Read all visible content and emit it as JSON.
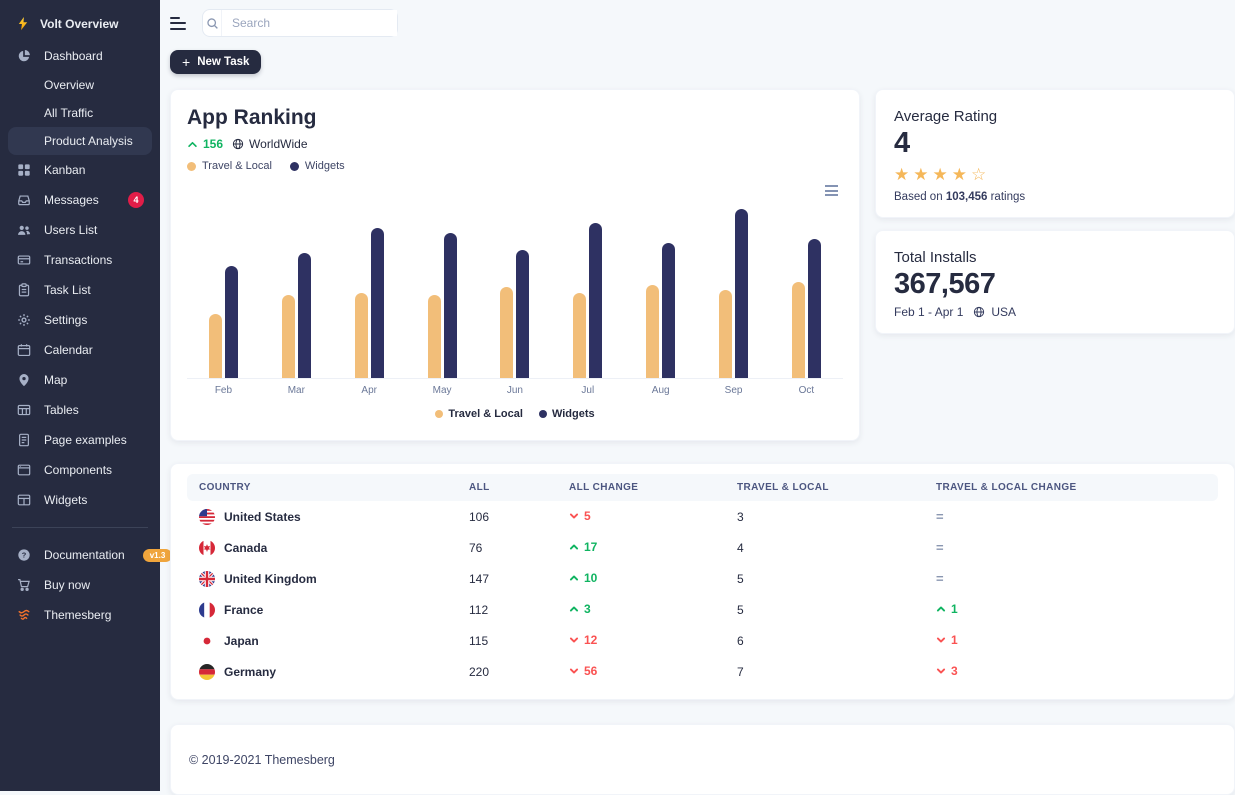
{
  "app": {
    "brand": "Volt Overview"
  },
  "topbar": {
    "search_placeholder": "Search"
  },
  "actions": {
    "new_task": "New Task"
  },
  "sidebar": {
    "items": [
      {
        "label": "Dashboard",
        "icon": "pie-chart"
      },
      {
        "label": "Overview",
        "indent": true
      },
      {
        "label": "All Traffic",
        "indent": true
      },
      {
        "label": "Product Analysis",
        "indent": true,
        "active": true
      },
      {
        "label": "Kanban",
        "icon": "grid"
      },
      {
        "label": "Messages",
        "icon": "inbox",
        "badge": "4"
      },
      {
        "label": "Users List",
        "icon": "users"
      },
      {
        "label": "Transactions",
        "icon": "credit-card"
      },
      {
        "label": "Task List",
        "icon": "clipboard"
      },
      {
        "label": "Settings",
        "icon": "gear"
      },
      {
        "label": "Calendar",
        "icon": "calendar"
      },
      {
        "label": "Map",
        "icon": "map-pin"
      },
      {
        "label": "Tables",
        "icon": "table"
      },
      {
        "label": "Page examples",
        "icon": "document"
      },
      {
        "label": "Components",
        "icon": "window"
      },
      {
        "label": "Widgets",
        "icon": "widgets"
      }
    ],
    "footer_items": [
      {
        "label": "Documentation",
        "icon": "question",
        "badge": "v1.3"
      },
      {
        "label": "Buy now",
        "icon": "cart"
      },
      {
        "label": "Themesberg",
        "icon": "themesberg-logo"
      }
    ]
  },
  "app_ranking": {
    "title": "App Ranking",
    "change": "156",
    "scope": "WorldWide"
  },
  "chart_data": {
    "type": "bar",
    "categories": [
      "Feb",
      "Mar",
      "Apr",
      "May",
      "Jun",
      "Jul",
      "Aug",
      "Sep",
      "Oct"
    ],
    "series": [
      {
        "name": "Travel & Local",
        "color": "#f2be79",
        "values": [
          38,
          49,
          50,
          49,
          54,
          50,
          55,
          52,
          57
        ]
      },
      {
        "name": "Widgets",
        "color": "#2e3162",
        "values": [
          66,
          74,
          89,
          86,
          76,
          92,
          80,
          100,
          82
        ]
      }
    ],
    "title": "App Ranking",
    "xlabel": "",
    "ylabel": "",
    "ylim": [
      0,
      100
    ],
    "grid": false,
    "legend_position": "bottom"
  },
  "cards": {
    "average_rating": {
      "title": "Average Rating",
      "value": "4",
      "stars_filled": 4,
      "stars_total": 5,
      "caption_prefix": "Based on",
      "caption_count": "103,456",
      "caption_suffix": "ratings"
    },
    "total_installs": {
      "title": "Total Installs",
      "value": "367,567",
      "period": "Feb 1 - Apr 1",
      "region": "USA"
    }
  },
  "table": {
    "columns": [
      "Country",
      "All",
      "All Change",
      "Travel & Local",
      "Travel & Local Change"
    ],
    "rows": [
      {
        "country": "United States",
        "flag": "us",
        "all": "106",
        "all_change": {
          "dir": "down",
          "value": "5"
        },
        "travel_local": "3",
        "travel_local_change": {
          "dir": "equal",
          "value": ""
        }
      },
      {
        "country": "Canada",
        "flag": "ca",
        "all": "76",
        "all_change": {
          "dir": "up",
          "value": "17"
        },
        "travel_local": "4",
        "travel_local_change": {
          "dir": "equal",
          "value": ""
        }
      },
      {
        "country": "United Kingdom",
        "flag": "gb",
        "all": "147",
        "all_change": {
          "dir": "up",
          "value": "10"
        },
        "travel_local": "5",
        "travel_local_change": {
          "dir": "equal",
          "value": ""
        }
      },
      {
        "country": "France",
        "flag": "fr",
        "all": "112",
        "all_change": {
          "dir": "up",
          "value": "3"
        },
        "travel_local": "5",
        "travel_local_change": {
          "dir": "up",
          "value": "1"
        }
      },
      {
        "country": "Japan",
        "flag": "jp",
        "all": "115",
        "all_change": {
          "dir": "down",
          "value": "12"
        },
        "travel_local": "6",
        "travel_local_change": {
          "dir": "down",
          "value": "1"
        }
      },
      {
        "country": "Germany",
        "flag": "de",
        "all": "220",
        "all_change": {
          "dir": "down",
          "value": "56"
        },
        "travel_local": "7",
        "travel_local_change": {
          "dir": "down",
          "value": "3"
        }
      }
    ]
  },
  "footer": {
    "copyright": "© 2019-2021 Themesberg"
  },
  "colors": {
    "sidebar_bg": "#262b40",
    "accent_orange": "#f2be79",
    "accent_navy": "#2e3162",
    "success_green": "#10b461",
    "danger_red": "#fa5252",
    "star_orange": "#f5b759",
    "badge_red": "#e11d48",
    "badge_orange": "#f0a53c",
    "page_bg": "#f5f8fb"
  }
}
